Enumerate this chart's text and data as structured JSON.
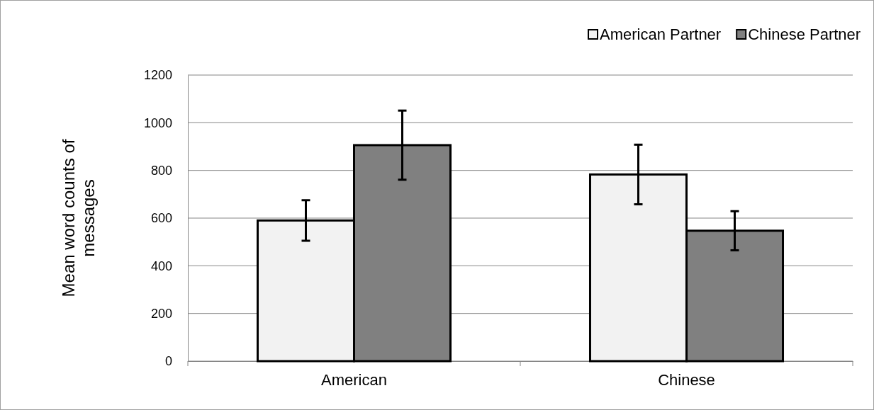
{
  "chart_data": {
    "type": "bar",
    "ylabel": "Mean word counts of messages",
    "categories": [
      "American",
      "Chinese"
    ],
    "series": [
      {
        "name": "American Partner",
        "color": "#f2f2f2",
        "values": [
          590,
          783
        ],
        "errors": [
          85,
          125
        ]
      },
      {
        "name": "Chinese Partner",
        "color": "#808080",
        "values": [
          906,
          547
        ],
        "errors": [
          145,
          82
        ]
      }
    ],
    "ylim": [
      0,
      1200
    ],
    "yticks": [
      0,
      200,
      400,
      600,
      800,
      1000,
      1200
    ],
    "grid": "y",
    "legend": "top right"
  }
}
